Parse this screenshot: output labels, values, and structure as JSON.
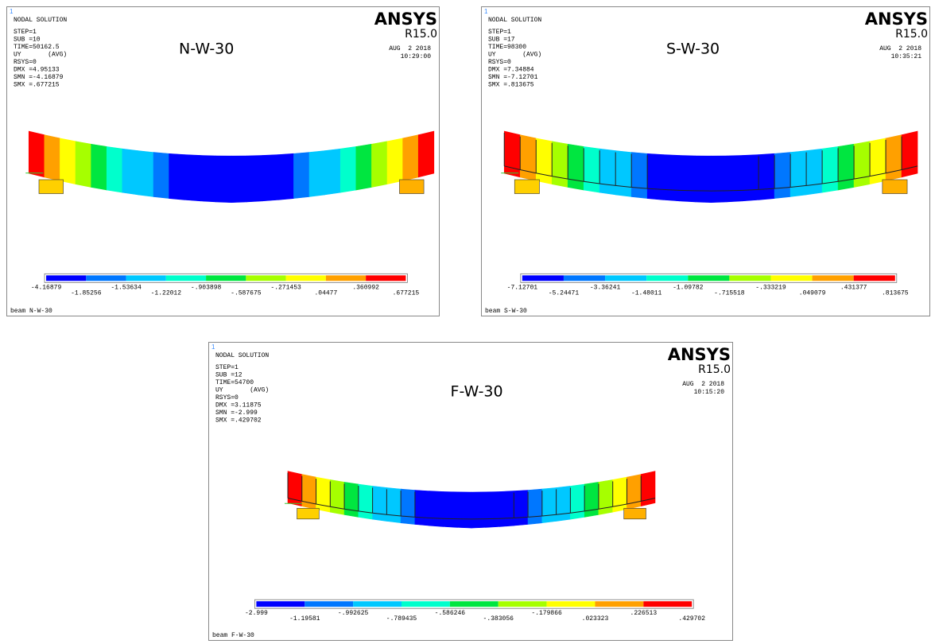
{
  "panels": [
    {
      "marker": "1",
      "header": "NODAL SOLUTION",
      "info": [
        "STEP=1",
        "SUB =10",
        "TIME=50162.5",
        "UY       (AVG)",
        "RSYS=0",
        "DMX =4.95133",
        "SMN =-4.16879",
        "SMX =.677215"
      ],
      "brand": "ANSYS",
      "version": "R15.0",
      "date": "AUG  2 2018",
      "time": "10:29:00",
      "label": "N-W-30",
      "legend": [
        "-4.16879",
        "-1.85256",
        "-1.53634",
        "-1.22012",
        "-.903898",
        "-.587675",
        "-.271453",
        ".04477",
        ".360992",
        ".677215"
      ],
      "footer": "beam N-W-30"
    },
    {
      "marker": "1",
      "header": "NODAL SOLUTION",
      "info": [
        "STEP=1",
        "SUB =17",
        "TIME=98300",
        "UY       (AVG)",
        "RSYS=0",
        "DMX =7.34884",
        "SMN =-7.12701",
        "SMX =.813675"
      ],
      "brand": "ANSYS",
      "version": "R15.0",
      "date": "AUG  2 2018",
      "time": "10:35:21",
      "label": "S-W-30",
      "legend": [
        "-7.12701",
        "-5.24471",
        "-3.36241",
        "-1.48011",
        "-1.09782",
        "-.715518",
        "-.333219",
        ".049079",
        ".431377",
        ".813675"
      ],
      "footer": "beam S-W-30"
    },
    {
      "marker": "1",
      "header": "NODAL SOLUTION",
      "info": [
        "STEP=1",
        "SUB =12",
        "TIME=54700",
        "UY       (AVG)",
        "RSYS=0",
        "DMX =3.11875",
        "SMN =-2.999",
        "SMX =.429702"
      ],
      "brand": "ANSYS",
      "version": "R15.0",
      "date": "AUG  2 2018",
      "time": "10:15:20",
      "label": "F-W-30",
      "legend": [
        "-2.999",
        "-1.19581",
        "-.992625",
        "-.789435",
        "-.586246",
        "-.383056",
        "-.179866",
        ".023323",
        ".226513",
        ".429702"
      ],
      "footer": "beam F-W-30"
    }
  ]
}
